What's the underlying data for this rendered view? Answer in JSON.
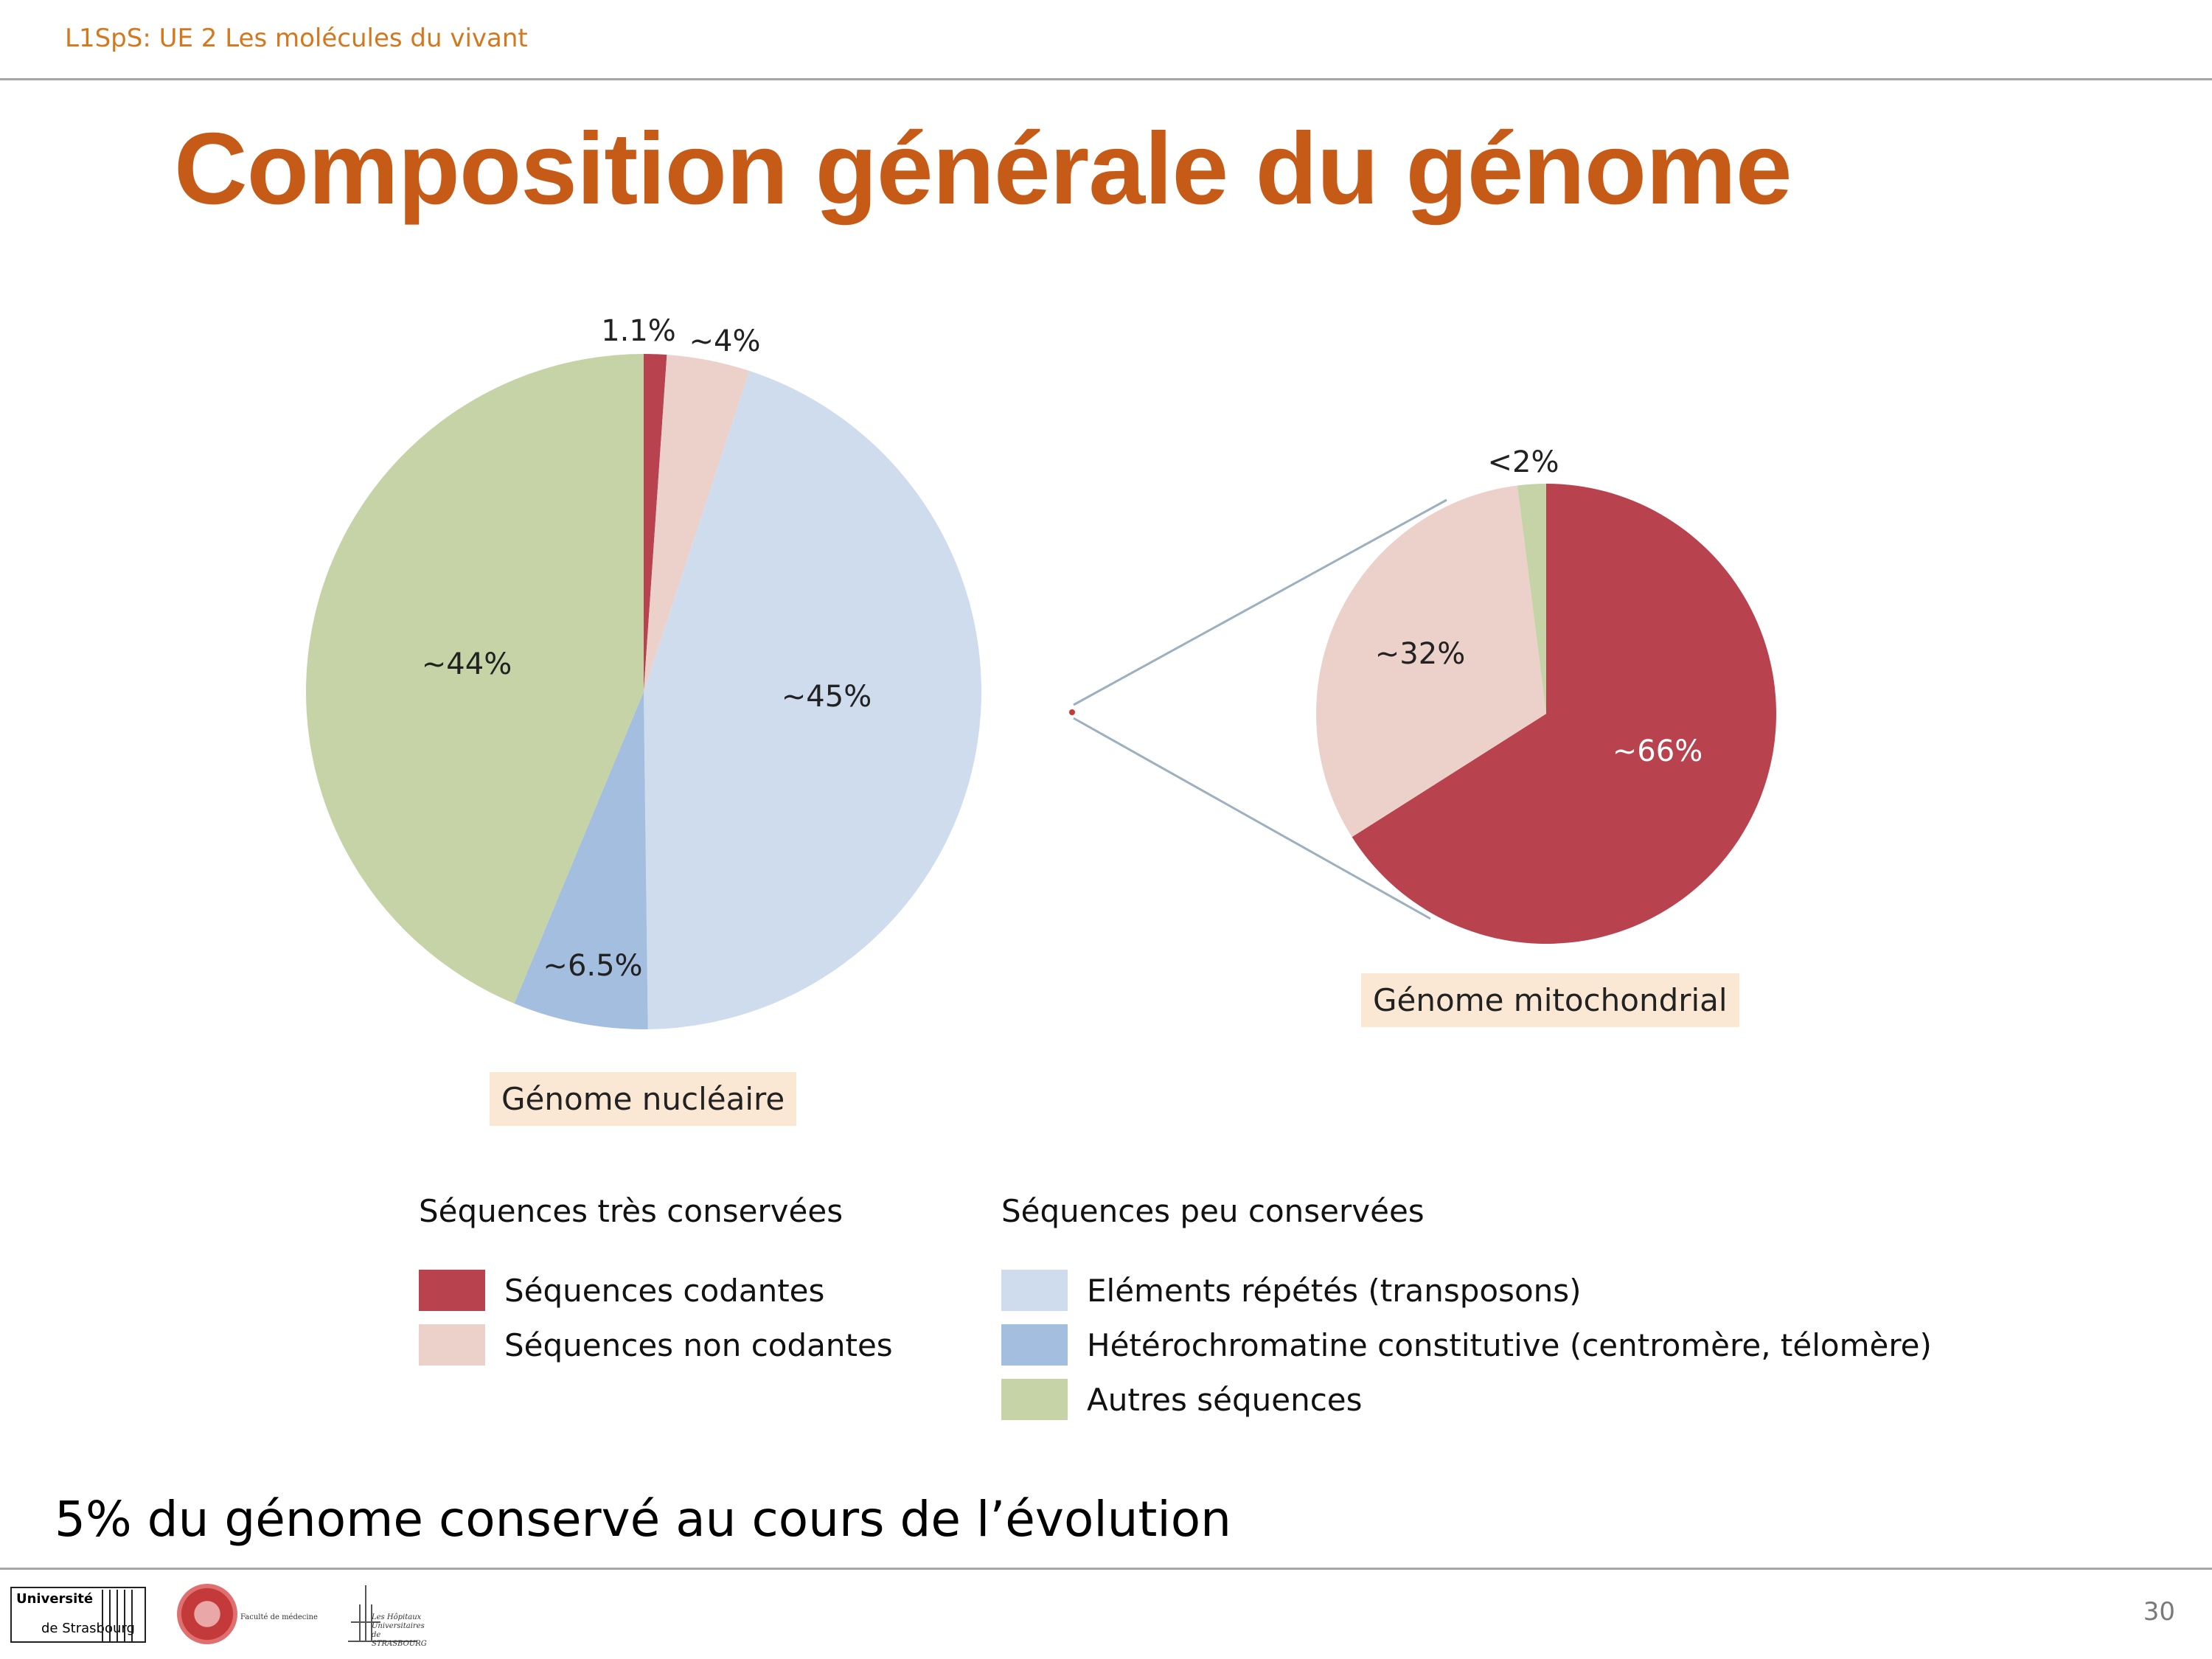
{
  "header": {
    "text": "L1SpS: UE 2 Les molécules du vivant"
  },
  "slide": {
    "title": "Composition générale du génome",
    "footnote": "5% du génome conservé au cours de l’évolution",
    "page_number": "30"
  },
  "logos": {
    "university_line1": "Université",
    "university_line2": "de Strasbourg",
    "faculty": "Faculté de médecine",
    "hospitals": "Les Hôpitaux Universitaires de STRASBOURG"
  },
  "colors": {
    "coding": "#b8434f",
    "noncoding": "#ecd1cb",
    "repeats": "#cedcee",
    "heterochromatin": "#a3bedf",
    "other": "#c5d3a7",
    "title": "#c65a17",
    "header": "#d4781e",
    "label_box": "#fbe8d4"
  },
  "legend": {
    "group1_title": "Séquences très conservées",
    "group2_title": "Séquences peu conservées",
    "items": [
      {
        "label": "Séquences codantes",
        "color": "#b8434f"
      },
      {
        "label": "Séquences non codantes",
        "color": "#ecd1cb"
      },
      {
        "label": "Eléments répétés (transposons)",
        "color": "#cedcee"
      },
      {
        "label": "Hétérochromatine constitutive (centromère, télomère)",
        "color": "#a3bedf"
      },
      {
        "label": "Autres séquences",
        "color": "#c5d3a7"
      }
    ]
  },
  "chart_data": [
    {
      "type": "pie",
      "title": "Génome nucléaire",
      "categories": [
        "Séquences codantes",
        "Séquences non codantes",
        "Eléments répétés (transposons)",
        "Hétérochromatine constitutive (centromère, télomère)",
        "Autres séquences"
      ],
      "values": [
        1.1,
        4,
        45,
        6.5,
        44
      ],
      "labels": [
        "1.1%",
        "~4%",
        "~45%",
        "~6.5%",
        "~44%"
      ],
      "colors": [
        "#b8434f",
        "#ecd1cb",
        "#cedcee",
        "#a3bedf",
        "#c5d3a7"
      ],
      "start": "top, clockwise"
    },
    {
      "type": "pie",
      "title": "Génome mitochondrial",
      "categories": [
        "Séquences codantes",
        "Séquences non codantes",
        "Autres séquences"
      ],
      "values": [
        66,
        32,
        2
      ],
      "labels": [
        "~66%",
        "~32%",
        "<2%"
      ],
      "colors": [
        "#b8434f",
        "#ecd1cb",
        "#c5d3a7"
      ],
      "start": "top, clockwise"
    }
  ]
}
